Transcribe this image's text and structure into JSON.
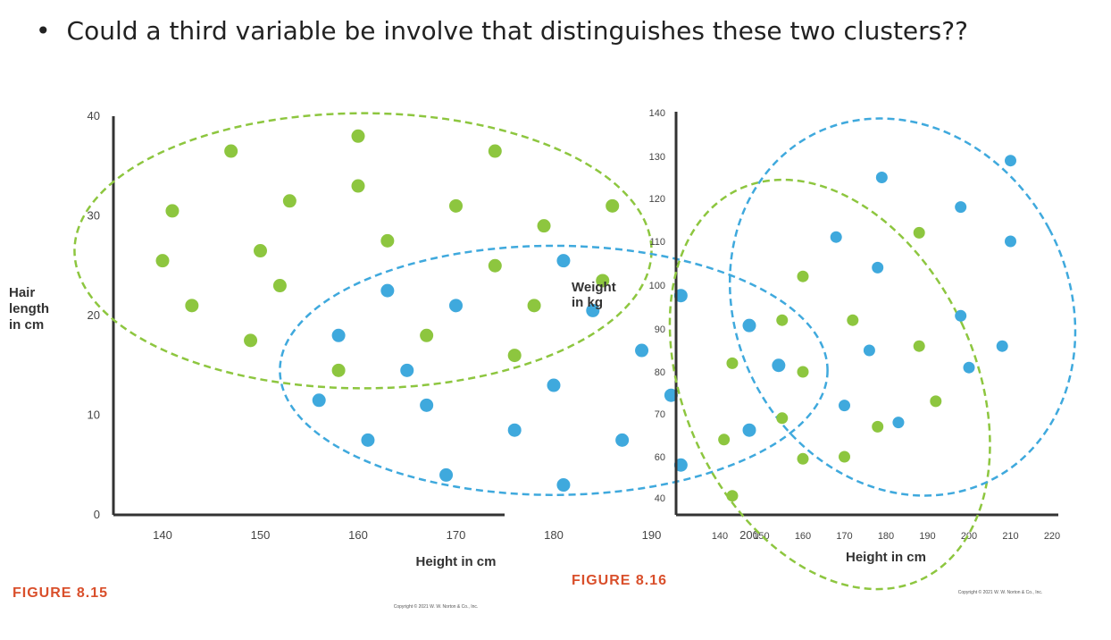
{
  "bullet": {
    "symbol": "•",
    "text": "Could a third variable be involve that distinguishes these two clusters??"
  },
  "colors": {
    "green": "#8dc63f",
    "blue": "#3fa9dd",
    "axis": "#333333",
    "figure_label": "#d94f2b"
  },
  "chart_data": [
    {
      "type": "scatter",
      "figure_label": "FIGURE 8.15",
      "copyright": "Copyright © 2021 W. W. Norton & Co., Inc.",
      "xlabel": "Height in cm",
      "ylabel_lines": [
        "Hair",
        "length",
        "in cm"
      ],
      "xlim": [
        128,
        205
      ],
      "ylim": [
        0,
        40
      ],
      "x_ticks": [
        140,
        150,
        160,
        170,
        180,
        190,
        200
      ],
      "y_ticks": [
        0,
        10,
        20,
        30,
        40
      ],
      "series": [
        {
          "color": "green",
          "points": [
            [
              147,
              36.5
            ],
            [
              160,
              38
            ],
            [
              174,
              36.5
            ],
            [
              141,
              30.5
            ],
            [
              153,
              31.5
            ],
            [
              160,
              33
            ],
            [
              170,
              31
            ],
            [
              179,
              29
            ],
            [
              186,
              31
            ],
            [
              140,
              25.5
            ],
            [
              150,
              26.5
            ],
            [
              163,
              27.5
            ],
            [
              174,
              25
            ],
            [
              185,
              23.5
            ],
            [
              143,
              21
            ],
            [
              152,
              23
            ],
            [
              149,
              17.5
            ],
            [
              167,
              18
            ],
            [
              178,
              21
            ],
            [
              176,
              16
            ],
            [
              158,
              14.5
            ]
          ],
          "ellipse": {
            "cx": 160.5,
            "cy": 26.5,
            "rx": 29.5,
            "ry": 13.8
          }
        },
        {
          "color": "blue",
          "points": [
            [
              181,
              25.5
            ],
            [
              163,
              22.5
            ],
            [
              170,
              21
            ],
            [
              184,
              20.5
            ],
            [
              193,
              22
            ],
            [
              200,
              19
            ],
            [
              158,
              18
            ],
            [
              189,
              16.5
            ],
            [
              203,
              15
            ],
            [
              165,
              14.5
            ],
            [
              156,
              11.5
            ],
            [
              167,
              11
            ],
            [
              180,
              13
            ],
            [
              192,
              12
            ],
            [
              161,
              7.5
            ],
            [
              176,
              8.5
            ],
            [
              187,
              7.5
            ],
            [
              200,
              8.5
            ],
            [
              169,
              4
            ],
            [
              181,
              3
            ],
            [
              193,
              5
            ]
          ],
          "ellipse": {
            "cx": 180,
            "cy": 14.5,
            "rx": 28,
            "ry": 12.5
          }
        }
      ]
    },
    {
      "type": "scatter",
      "figure_label": "FIGURE 8.16",
      "copyright": "Copyright © 2021 W. W. Norton & Co., Inc.",
      "xlabel": "Height in cm",
      "ylabel_lines": [
        "Weight",
        "in kg"
      ],
      "xlim": [
        131,
        220
      ],
      "ylim": [
        37,
        140
      ],
      "x_ticks": [
        140,
        150,
        160,
        170,
        180,
        190,
        200,
        210,
        220
      ],
      "x_tick_labels": [
        "140",
        "150",
        "160",
        "170",
        "180",
        "190",
        "200",
        "210",
        "220"
      ],
      "y_ticks": [
        40,
        60,
        70,
        80,
        90,
        100,
        110,
        120,
        130,
        140
      ],
      "series": [
        {
          "color": "green",
          "points": [
            [
              143,
              41
            ],
            [
              141,
              64
            ],
            [
              143,
              82
            ],
            [
              155,
              69
            ],
            [
              160,
              59
            ],
            [
              160,
              80
            ],
            [
              155,
              92
            ],
            [
              160,
              102
            ],
            [
              172,
              92
            ],
            [
              170,
              60
            ],
            [
              178,
              67
            ],
            [
              188,
              86
            ],
            [
              188,
              112
            ],
            [
              192,
              73
            ]
          ],
          "ellipse": {
            "cx": 166.5,
            "cy": 77,
            "rx": 35,
            "ry": 50,
            "rotate": -25
          }
        },
        {
          "color": "blue",
          "points": [
            [
              168,
              111
            ],
            [
              178,
              104
            ],
            [
              179,
              125
            ],
            [
              176,
              85
            ],
            [
              170,
              72
            ],
            [
              183,
              68
            ],
            [
              198,
              93
            ],
            [
              198,
              118
            ],
            [
              200,
              81
            ],
            [
              208,
              86
            ],
            [
              210,
              129
            ],
            [
              210,
              110
            ]
          ],
          "ellipse": {
            "cx": 184,
            "cy": 95,
            "rx": 40,
            "ry": 58,
            "rotate": -28
          }
        }
      ]
    }
  ]
}
